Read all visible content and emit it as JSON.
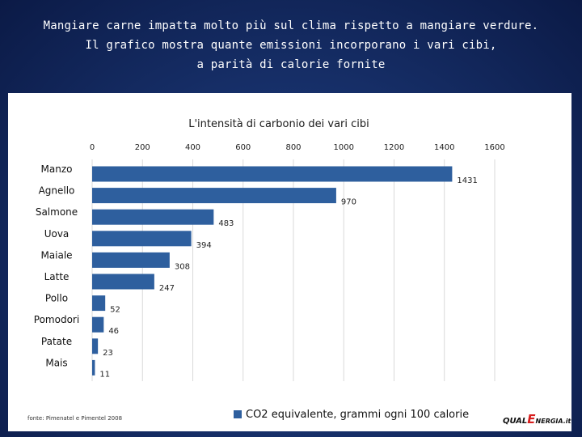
{
  "slide": {
    "title_lines": [
      "Mangiare carne impatta molto più sul clima rispetto a mangiare verdure.",
      "Il grafico mostra quante emissioni incorporano i vari cibi,",
      "a parità di calorie fornite"
    ]
  },
  "chart_data": {
    "type": "bar",
    "orientation": "horizontal",
    "title": "L'intensità di carbonio dei vari cibi",
    "categories": [
      "Manzo",
      "Agnello",
      "Salmone",
      "Uova",
      "Maiale",
      "Latte",
      "Pollo",
      "Pomodori",
      "Patate",
      "Mais"
    ],
    "series": [
      {
        "name": "CO2 equivalente, grammi ogni 100 calorie",
        "values": [
          1431,
          970,
          483,
          394,
          308,
          247,
          52,
          46,
          23,
          11
        ]
      }
    ],
    "xlim": [
      0,
      1600
    ],
    "x_ticks": [
      0,
      200,
      400,
      600,
      800,
      1000,
      1200,
      1400,
      1600
    ],
    "grid": true,
    "x_axis_position": "top",
    "legend_position": "bottom",
    "source": "fonte: Pimenatel e Pimentel 2008",
    "bar_color": "#2e5f9e"
  },
  "logo": {
    "part1": "QUAL",
    "part2": "E",
    "part3": "NERGIA",
    "part4": ".it"
  }
}
